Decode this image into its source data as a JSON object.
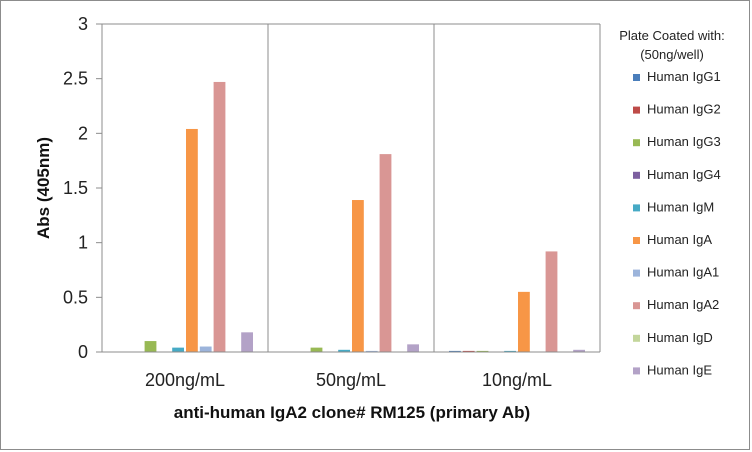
{
  "chart_data": {
    "type": "bar",
    "title": "",
    "xlabel": "anti-human IgA2 clone# RM125 (primary Ab)",
    "ylabel": "Abs (405nm)",
    "ylim": [
      0,
      3
    ],
    "yticks": [
      "0",
      "0.5",
      "1",
      "1.5",
      "2",
      "2.5",
      "3"
    ],
    "grid": "vertical category separators",
    "categories": [
      "200ng/mL",
      "50ng/mL",
      "10ng/mL"
    ],
    "legend": {
      "title_lines": [
        "Plate Coated with:",
        "(50ng/well)"
      ],
      "placement": "right"
    },
    "series": [
      {
        "name": "Human IgG1",
        "color": "#4a7ebb",
        "values": [
          0.0,
          0.0,
          0.01
        ]
      },
      {
        "name": "Human IgG2",
        "color": "#be4b48",
        "values": [
          0.0,
          0.0,
          0.01
        ]
      },
      {
        "name": "Human IgG3",
        "color": "#98b954",
        "values": [
          0.1,
          0.04,
          0.01
        ]
      },
      {
        "name": "Human IgG4",
        "color": "#7d60a0",
        "values": [
          0.0,
          0.0,
          0.0
        ]
      },
      {
        "name": "Human IgM",
        "color": "#46aac5",
        "values": [
          0.04,
          0.02,
          0.01
        ]
      },
      {
        "name": "Human IgA",
        "color": "#f79646",
        "values": [
          2.04,
          1.39,
          0.55
        ]
      },
      {
        "name": "Human IgA1",
        "color": "#9cb4db",
        "values": [
          0.05,
          0.01,
          0.0
        ]
      },
      {
        "name": "Human IgA2",
        "color": "#d99694",
        "values": [
          2.47,
          1.81,
          0.92
        ]
      },
      {
        "name": "Human IgD",
        "color": "#c3d69b",
        "values": [
          0.0,
          0.0,
          0.0
        ]
      },
      {
        "name": "Human IgE",
        "color": "#b3a2c7",
        "values": [
          0.18,
          0.07,
          0.02
        ]
      }
    ]
  }
}
